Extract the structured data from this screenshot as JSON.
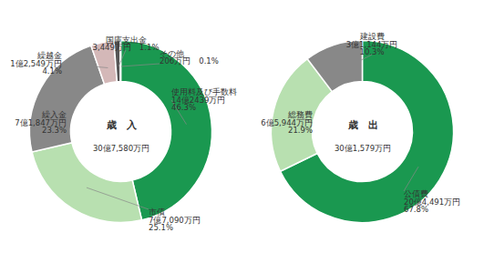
{
  "chart_data": [
    {
      "type": "donut",
      "title": "歳　入",
      "subtitle": "30億7,580万円",
      "categories": [
        "使用料及び手数料\n14億2439万円\n46.3%",
        "市債\n7億7,090万円\n25.1%",
        "繰入金\n7億1,847万円\n23.3%",
        "繰越金\n1億2,549万円\n4.1%",
        "国庫支出金\n3,449万円　1.1%",
        "その他\n206万円　0.1%"
      ],
      "values": [
        46.3,
        25.1,
        23.3,
        4.1,
        1.1,
        0.1
      ],
      "colors": [
        "#1a9850",
        "#b8e0b0",
        "#888888",
        "#d4b8b8",
        "#555555",
        "#222222"
      ]
    },
    {
      "type": "donut",
      "title": "歳　出",
      "subtitle": "30億1,579万円",
      "categories": [
        "公債費\n20億4,491万円\n67.8%",
        "総務費\n6億5,944万円\n21.9%",
        "建設費\n3億1,144万円\n10.3%"
      ],
      "values": [
        67.8,
        21.9,
        10.3
      ],
      "colors": [
        "#1a9850",
        "#b8e0b0",
        "#888888"
      ]
    }
  ]
}
